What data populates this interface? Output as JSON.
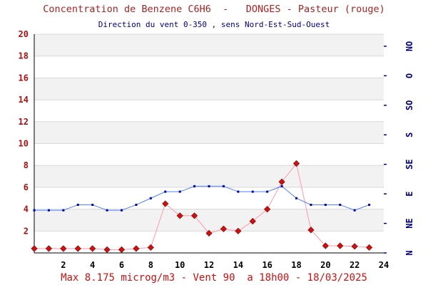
{
  "title": "Concentration de Benzene C6H6  -   DONGES - Pasteur (rouge)",
  "subtitle": "Direction du vent 0-350 , sens Nord-Est-Sud-Ouest",
  "footer": "Max 8.175 microg/m3 - Vent 90  a 18h00 - 18/03/2025",
  "colors": {
    "benzene_line": "#ff99aa",
    "benzene_marker": "#cc1111",
    "wind_line": "#4d7fff",
    "wind_marker": "#0000aa",
    "band": "#f2f2f2",
    "grid": "#d8d8d8"
  },
  "chart_data": {
    "type": "line",
    "x": [
      0,
      1,
      2,
      3,
      4,
      5,
      6,
      7,
      8,
      9,
      10,
      11,
      12,
      13,
      14,
      15,
      16,
      17,
      18,
      19,
      20,
      21,
      22,
      23
    ],
    "xlim": [
      0,
      24
    ],
    "x_ticks": [
      "2",
      "4",
      "6",
      "8",
      "10",
      "12",
      "14",
      "16",
      "18",
      "20",
      "22",
      "24"
    ],
    "ylim": [
      0,
      20
    ],
    "y_ticks": [
      "2",
      "4",
      "6",
      "8",
      "10",
      "12",
      "14",
      "16",
      "18",
      "20"
    ],
    "grid": true,
    "series": [
      {
        "axis": "left",
        "values": [
          0.4,
          0.4,
          0.4,
          0.4,
          0.4,
          0.3,
          0.3,
          0.4,
          0.5,
          4.5,
          3.4,
          3.4,
          1.8,
          2.2,
          2.0,
          2.9,
          4.0,
          6.5,
          8.175,
          2.1,
          0.65,
          0.65,
          0.6,
          0.5
        ]
      },
      {
        "axis": "right",
        "values": [
          3.9,
          3.9,
          3.9,
          4.4,
          4.4,
          3.9,
          3.9,
          4.4,
          5.0,
          5.6,
          5.6,
          6.1,
          6.1,
          6.1,
          5.6,
          5.6,
          5.6,
          6.1,
          5.0,
          4.4,
          4.4,
          4.4,
          3.9,
          4.4
        ]
      }
    ],
    "right_axis_ticks": [
      "N",
      "NE",
      "E",
      "SE",
      "S",
      "SO",
      "O",
      "NO"
    ],
    "right_axis_levels": [
      0,
      2.7,
      5.4,
      8.1,
      10.8,
      13.5,
      16.2,
      18.9
    ]
  }
}
